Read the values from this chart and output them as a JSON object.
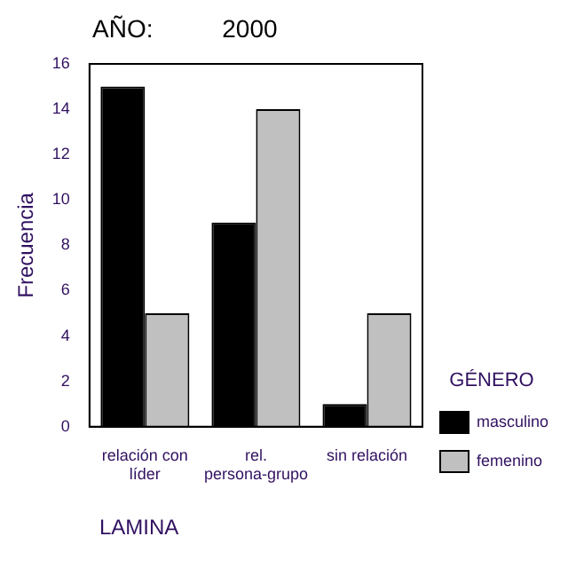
{
  "chart_data": {
    "type": "bar",
    "title": "AÑO:          2000",
    "xlabel": "LAMINA",
    "ylabel": "Frecuencia",
    "legend_title": "GÉNERO",
    "categories": [
      "relación con líder",
      "rel. persona-grupo",
      "sin relación"
    ],
    "series": [
      {
        "name": "masculino",
        "color": "#000000",
        "values": [
          15,
          9,
          1
        ]
      },
      {
        "name": "femenino",
        "color": "#c0c0c0",
        "values": [
          5,
          14,
          5
        ]
      }
    ],
    "ylim": [
      0,
      16
    ],
    "yticks": [
      0,
      2,
      4,
      6,
      8,
      10,
      12,
      14,
      16
    ],
    "grid": false,
    "legend": "right"
  }
}
